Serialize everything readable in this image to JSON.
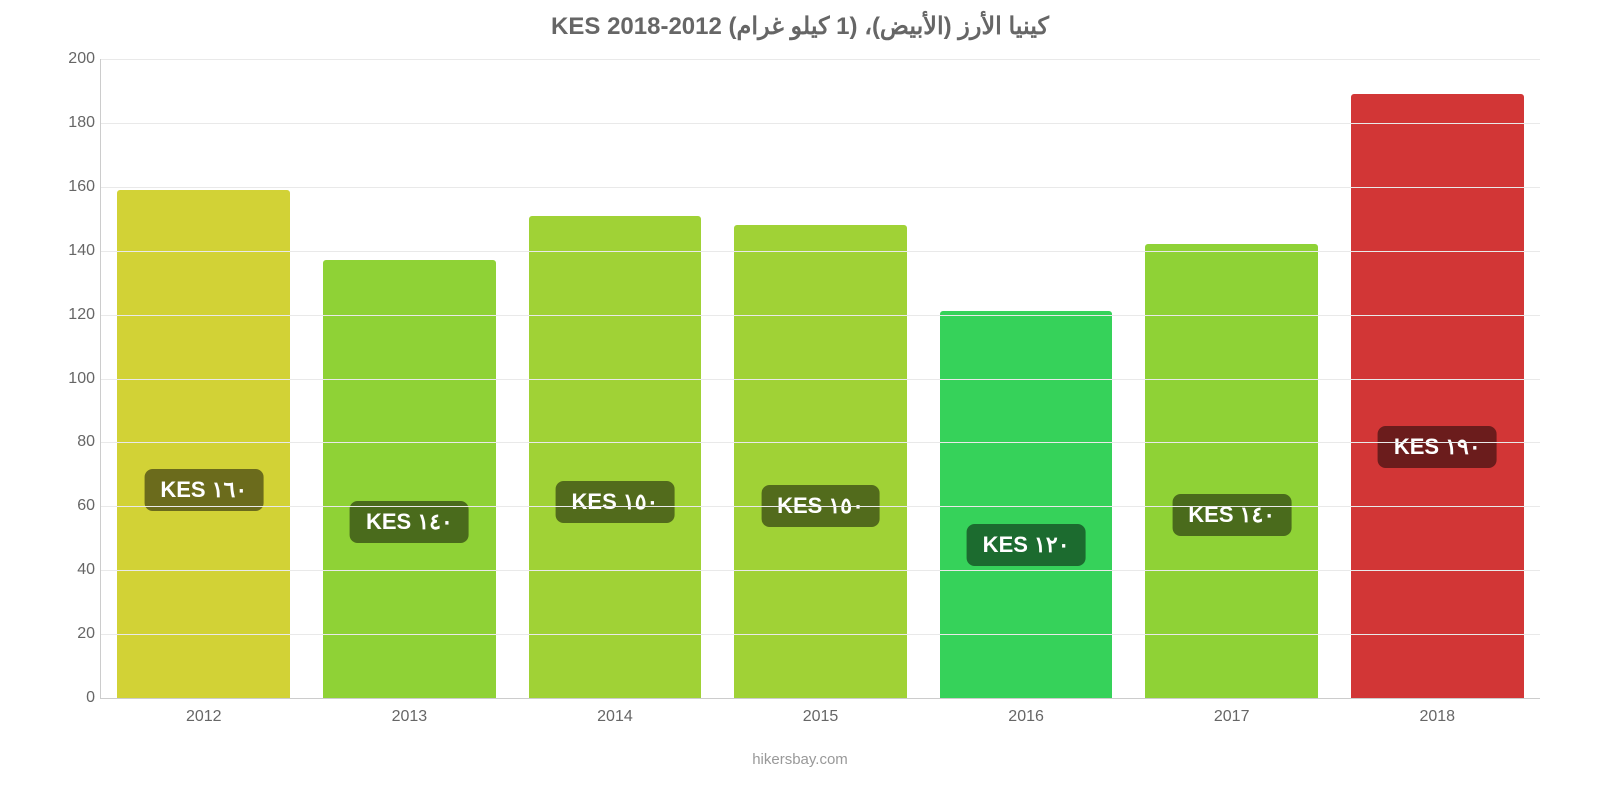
{
  "chart": {
    "type": "bar",
    "title": "كينيا الأرز (الأبيض)، (1 كيلو غرام) KES 2018-2012",
    "title_fontsize": 24,
    "title_color": "#666666",
    "background_color": "#ffffff",
    "grid_color": "#e9e9e9",
    "axis_color": "#cccccc",
    "tick_label_color": "#666666",
    "tick_fontsize": 16,
    "ylim_min": 0,
    "ylim_max": 200,
    "ytick_step": 20,
    "yticks": [
      0,
      20,
      40,
      60,
      80,
      100,
      120,
      140,
      160,
      180,
      200
    ],
    "categories": [
      "2012",
      "2013",
      "2014",
      "2015",
      "2016",
      "2017",
      "2018"
    ],
    "values": [
      159,
      137,
      151,
      148,
      121,
      142,
      189
    ],
    "bar_colors": [
      "#d2d236",
      "#8fd236",
      "#a0d236",
      "#a0d236",
      "#36d25a",
      "#8fd236",
      "#d23636"
    ],
    "bar_labels": [
      "١٦٠ KES",
      "١٤٠ KES",
      "١٥٠ KES",
      "١٥٠ KES",
      "١٢٠ KES",
      "١٤٠ KES",
      "١٩٠ KES"
    ],
    "badge_bg_colors": [
      "#6b6b1c",
      "#4a6b1c",
      "#526b1c",
      "#526b1c",
      "#1c6b2f",
      "#4a6b1c",
      "#6b1c1c"
    ],
    "badge_text_color": "#ffffff",
    "badge_fontsize": 22,
    "bar_width_rel": 0.84,
    "attribution": "hikersbay.com"
  }
}
